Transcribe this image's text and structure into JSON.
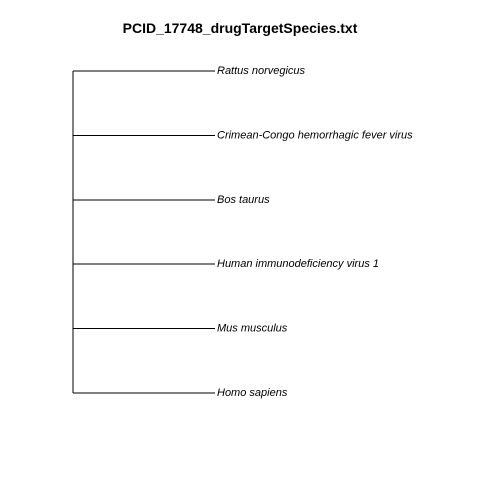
{
  "title": "PCID_17748_drugTargetSpecies.txt",
  "tips": [
    {
      "label": "Rattus norvegicus"
    },
    {
      "label": "Crimean-Congo hemorrhagic fever virus"
    },
    {
      "label": "Bos taurus"
    },
    {
      "label": "Human immunodeficiency virus 1"
    },
    {
      "label": "Mus musculus"
    },
    {
      "label": "Homo sapiens"
    }
  ],
  "colors": {
    "line": "#000000",
    "text": "#000000",
    "background": "#ffffff"
  }
}
